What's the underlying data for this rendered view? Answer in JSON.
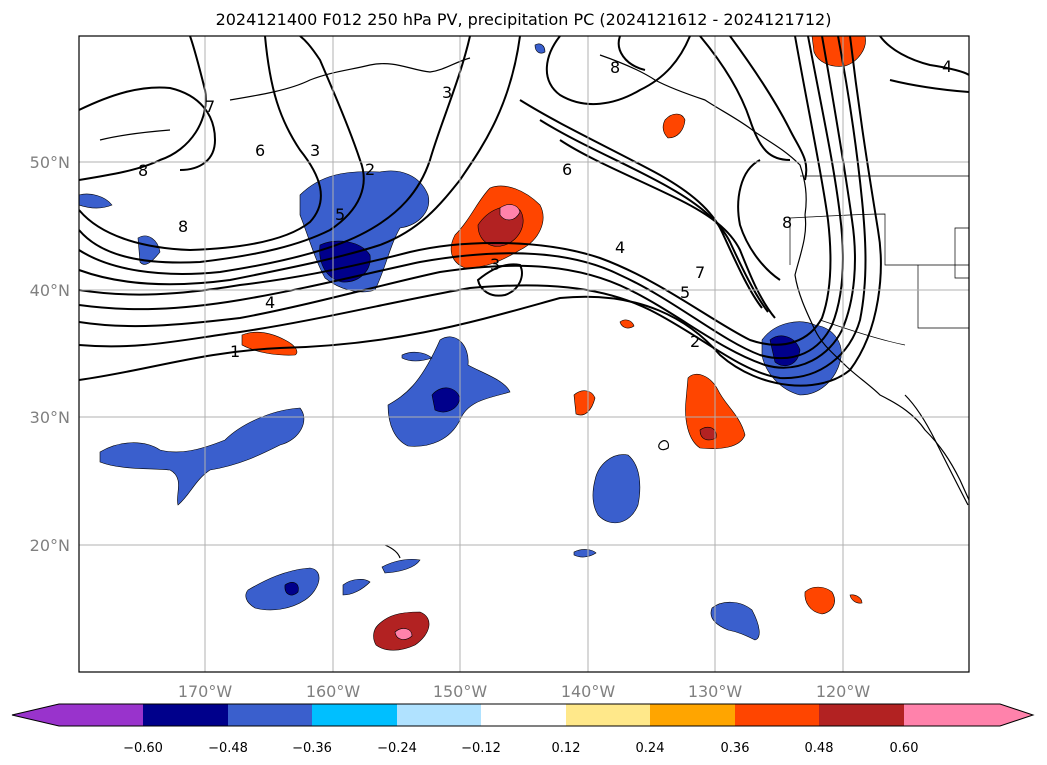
{
  "title": "2024121400 F012 250 hPa PV, precipitation PC (2024121612 - 2024121712)",
  "map": {
    "lon_ticks": [
      "170°W",
      "160°W",
      "150°W",
      "140°W",
      "130°W",
      "120°W"
    ],
    "lat_ticks": [
      "50°N",
      "40°N",
      "30°N",
      "20°N"
    ],
    "contour_labels": [
      "7",
      "6",
      "3",
      "2",
      "5",
      "8",
      "8",
      "3",
      "4",
      "1",
      "6",
      "4",
      "7",
      "5",
      "2",
      "8",
      "3",
      "4",
      "8"
    ],
    "grid": true
  },
  "colorbar": {
    "ticks": [
      "−0.60",
      "−0.48",
      "−0.36",
      "−0.24",
      "−0.12",
      "0.12",
      "0.24",
      "0.36",
      "0.48",
      "0.60"
    ],
    "colors": [
      "#9933cc",
      "#00008b",
      "#3a5fcd",
      "#00bfff",
      "#b0e2ff",
      "#ffffff",
      "#ffe88a",
      "#ffa500",
      "#ff4500",
      "#b22222",
      "#ff82ab"
    ]
  }
}
